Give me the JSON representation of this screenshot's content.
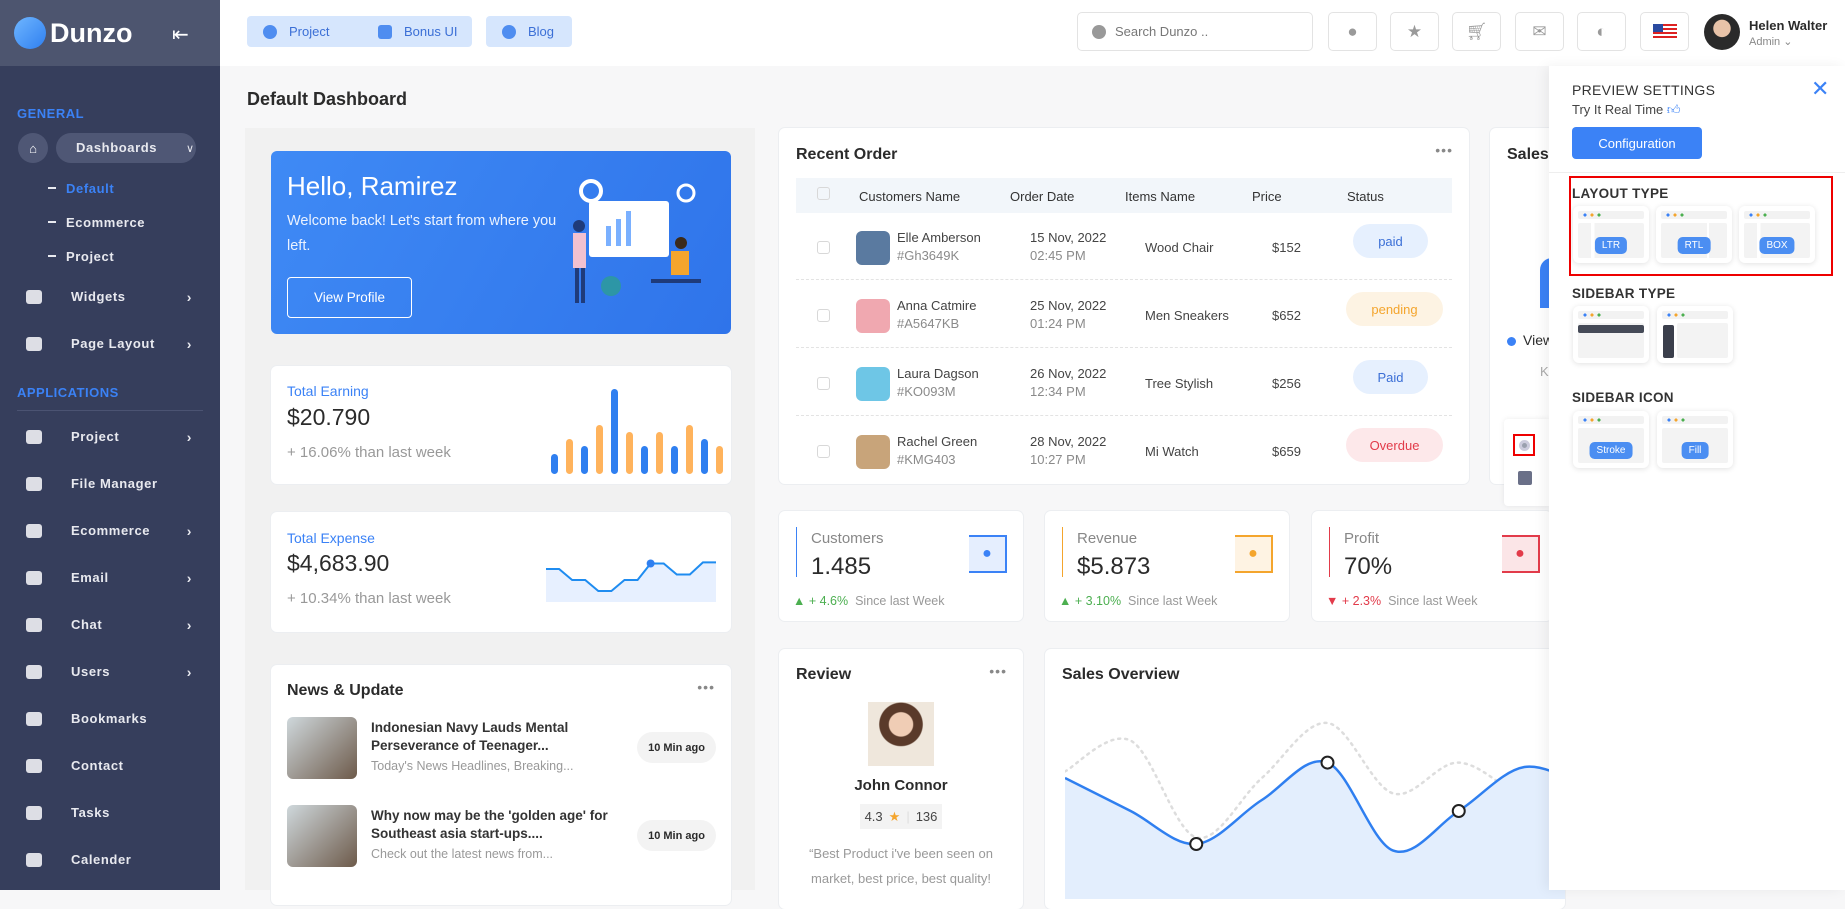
{
  "app": {
    "name": "Dunzo"
  },
  "sidebar": {
    "general_label": "GENERAL",
    "dashboards": {
      "label": "Dashboards",
      "children": [
        "Default",
        "Ecommerce",
        "Project"
      ]
    },
    "general_items": [
      {
        "label": "Widgets",
        "icon": "pie-chart-icon"
      },
      {
        "label": "Page Layout",
        "icon": "layout-icon"
      }
    ],
    "applications_label": "APPLICATIONS",
    "app_items": [
      {
        "label": "Project",
        "icon": "info-icon",
        "chevron": true
      },
      {
        "label": "File Manager",
        "icon": "file-icon",
        "chevron": false
      },
      {
        "label": "Ecommerce",
        "icon": "bag-icon",
        "chevron": true
      },
      {
        "label": "Email",
        "icon": "mail-icon",
        "chevron": true
      },
      {
        "label": "Chat",
        "icon": "chat-icon",
        "chevron": true
      },
      {
        "label": "Users",
        "icon": "user-icon",
        "chevron": true
      },
      {
        "label": "Bookmarks",
        "icon": "bookmark-icon",
        "chevron": false
      },
      {
        "label": "Contact",
        "icon": "phone-icon",
        "chevron": false
      },
      {
        "label": "Tasks",
        "icon": "check-icon",
        "chevron": false
      },
      {
        "label": "Calender",
        "icon": "calendar-icon",
        "chevron": false
      }
    ]
  },
  "header": {
    "buttons": [
      "Project",
      "Bonus UI",
      "Blog"
    ],
    "search_placeholder": "Search Dunzo ..",
    "icons": [
      "bell-icon",
      "star-icon",
      "cart-icon",
      "mail-icon",
      "theme-icon",
      "flag-us-icon"
    ],
    "user": {
      "name": "Helen Walter",
      "role": "Admin"
    }
  },
  "page_title": "Default Dashboard",
  "hero": {
    "greeting": "Hello, Ramirez",
    "message": "Welcome back! Let's start from where you left.",
    "button": "View Profile"
  },
  "earning": {
    "label": "Total Earning",
    "value": "$20.790",
    "change": "+ 16.06% than last week",
    "bars": [
      20,
      35,
      28,
      49,
      85,
      42,
      28,
      42,
      28,
      49,
      35,
      28
    ]
  },
  "expense": {
    "label": "Total Expense",
    "value": "$4,683.90",
    "change": "+ 10.34% than last week",
    "line": [
      50,
      50,
      40,
      40,
      30,
      30,
      40,
      40,
      55,
      55,
      45,
      45,
      56,
      56
    ]
  },
  "news": {
    "title": "News & Update",
    "items": [
      {
        "title1": "Indonesian Navy Lauds Mental",
        "title2": "Perseverance of Teenager...",
        "desc": "Today's News Headlines, Breaking...",
        "time": "10 Min ago"
      },
      {
        "title1": "Why now may be the 'golden age' for",
        "title2": "Southeast asia start-ups....",
        "desc": "Check out the latest news from...",
        "time": "10 Min ago"
      }
    ]
  },
  "orders": {
    "title": "Recent Order",
    "columns": [
      "Customers Name",
      "Order Date",
      "Items Name",
      "Price",
      "Status"
    ],
    "rows": [
      {
        "name": "Elle Amberson",
        "id": "#Gh3649K",
        "date": "15 Nov, 2022",
        "time": "02:45 PM",
        "item": "Wood Chair",
        "price": "$152",
        "status": "paid",
        "kind": "paid"
      },
      {
        "name": "Anna Catmire",
        "id": "#A5647KB",
        "date": "25 Nov, 2022",
        "time": "01:24 PM",
        "item": "Men Sneakers",
        "price": "$652",
        "status": "pending",
        "kind": "pending"
      },
      {
        "name": "Laura Dagson",
        "id": "#KO093M",
        "date": "26 Nov, 2022",
        "time": "12:34 PM",
        "item": "Tree Stylish",
        "price": "$256",
        "status": "Paid",
        "kind": "paid"
      },
      {
        "name": "Rachel Green",
        "id": "#KMG403",
        "date": "28 Nov, 2022",
        "time": "10:27 PM",
        "item": "Mi Watch",
        "price": "$659",
        "status": "Overdue",
        "kind": "overdue"
      }
    ]
  },
  "sales_partial": {
    "title": "Sales",
    "legend": "View",
    "sub": "Ke"
  },
  "stats": [
    {
      "label": "Customers",
      "value": "1.485",
      "change": "+ 4.6%",
      "since": "Since last Week",
      "color": "#3b82f6",
      "trend": "up"
    },
    {
      "label": "Revenue",
      "value": "$5.873",
      "change": "+ 3.10%",
      "since": "Since last Week",
      "color": "#f4a52d",
      "trend": "up"
    },
    {
      "label": "Profit",
      "value": "70%",
      "change": "+ 2.3%",
      "since": "Since last Week",
      "color": "#e23b4a",
      "trend": "down"
    }
  ],
  "review": {
    "title": "Review",
    "name": "John Connor",
    "rating": "4.3",
    "count": "136",
    "quote": "“Best Product i've been seen on market, best price, best quality!"
  },
  "chart_data": {
    "type": "area",
    "title": "Sales Overview",
    "series": [
      {
        "values": [
          55,
          40,
          25,
          45,
          62,
          22,
          40,
          60,
          50
        ]
      },
      {
        "values": [
          58,
          72,
          28,
          55,
          80,
          48,
          62,
          45,
          30
        ],
        "style": "dotted"
      }
    ],
    "markers": [
      2,
      4,
      6
    ]
  },
  "panel": {
    "title": "PREVIEW SETTINGS",
    "subtitle": "Try It Real Time",
    "button": "Configuration",
    "layout_title": "LAYOUT TYPE",
    "layouts": [
      "LTR",
      "RTL",
      "BOX"
    ],
    "sidebar_type_title": "SIDEBAR TYPE",
    "sidebar_icon_title": "SIDEBAR ICON",
    "icon_options": [
      "Stroke",
      "Fill"
    ]
  },
  "colors": {
    "primary": "#3b82f6",
    "sidebar": "#363e5c",
    "warning": "#f4a52d",
    "danger": "#e23b4a",
    "success": "#4caf50"
  }
}
